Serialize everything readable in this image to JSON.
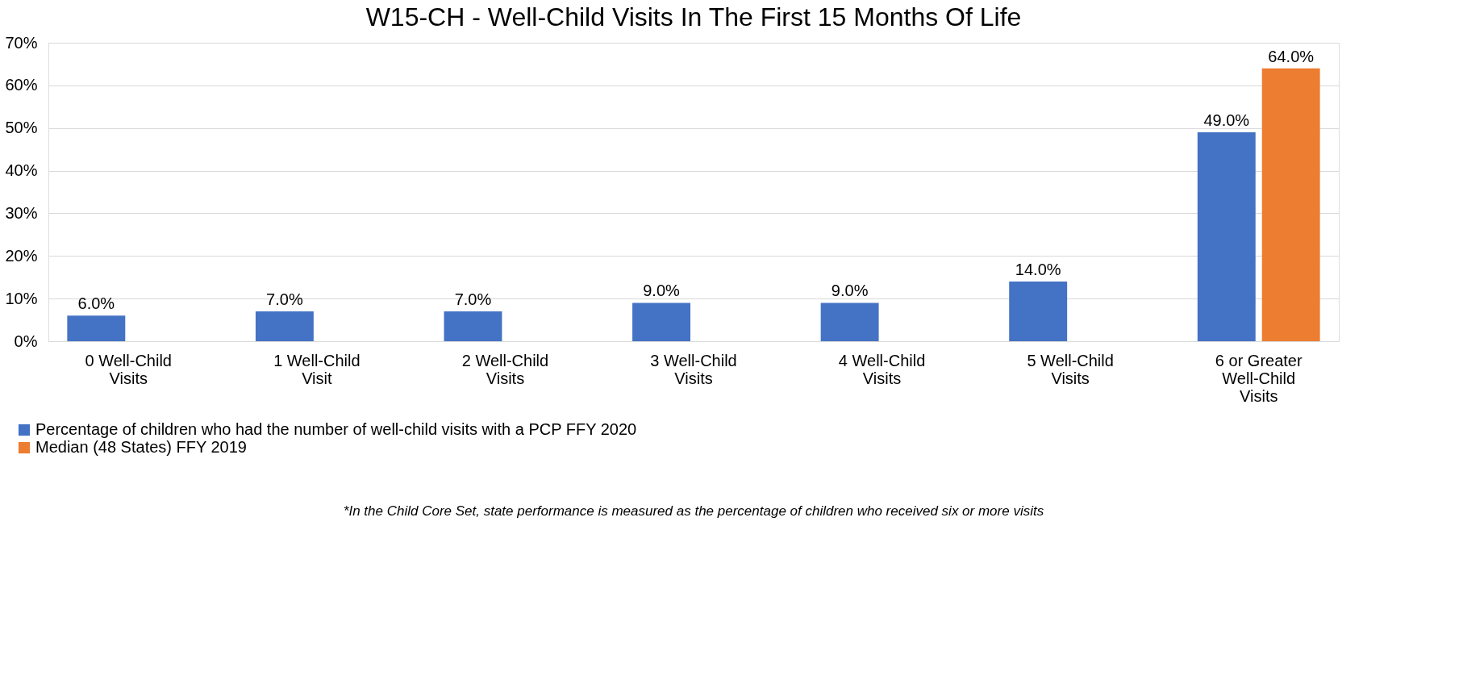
{
  "chart_data": {
    "type": "bar",
    "title": "W15-CH - Well-Child Visits In The First 15 Months Of Life",
    "categories": [
      "0 Well-Child Visits",
      "1 Well-Child Visit",
      "2 Well-Child Visits",
      "3 Well-Child Visits",
      "4 Well-Child Visits",
      "5 Well-Child Visits",
      "6 or Greater Well-Child Visits"
    ],
    "series": [
      {
        "name": "Percentage of children who had the number of well-child visits with a PCP FFY 2020",
        "color": "#4472c4",
        "values": [
          6,
          7,
          7,
          9,
          9,
          14,
          49
        ],
        "value_labels": [
          "6.0%",
          "7.0%",
          "7.0%",
          "9.0%",
          "9.0%",
          "14.0%",
          "49.0%"
        ]
      },
      {
        "name": "Median (48 States) FFY 2019",
        "color": "#ed7d31",
        "values": [
          null,
          null,
          null,
          null,
          null,
          null,
          64
        ],
        "value_labels": [
          null,
          null,
          null,
          null,
          null,
          null,
          "64.0%"
        ]
      }
    ],
    "ylim": [
      0,
      70
    ],
    "yticks": [
      {
        "value": 0,
        "label": "0%"
      },
      {
        "value": 10,
        "label": "10%"
      },
      {
        "value": 20,
        "label": "20%"
      },
      {
        "value": 30,
        "label": "30%"
      },
      {
        "value": 40,
        "label": "40%"
      },
      {
        "value": 50,
        "label": "50%"
      },
      {
        "value": 60,
        "label": "60%"
      },
      {
        "value": 70,
        "label": "70%"
      }
    ],
    "grid": "y",
    "legend": "bottom left",
    "annotations": [
      "*In the Child Core Set, state performance is measured as the percentage of children who received six or more visits"
    ]
  }
}
